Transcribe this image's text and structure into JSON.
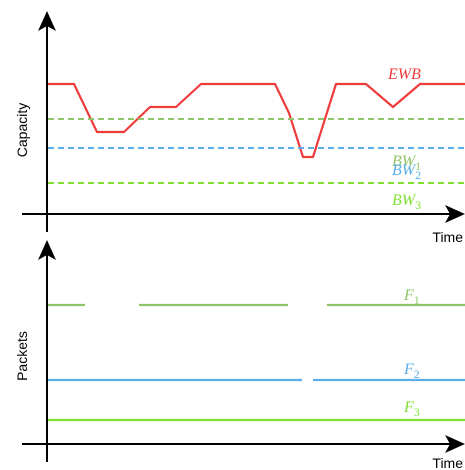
{
  "colors": {
    "ewb": "#ee3b3b",
    "bw1": "#8fc56a",
    "bw2": "#5aaee8",
    "bw3": "#80e032",
    "f1": "#8fc56a",
    "f2": "#5aaee8",
    "f3": "#80e032",
    "axis": "#000000"
  },
  "top_panel": {
    "y_axis_label": "Capacity",
    "x_axis_label": "Time",
    "ewb_label": {
      "main": "EWB"
    },
    "bw1_label": {
      "main": "BW",
      "sub": "1"
    },
    "bw2_label": {
      "main": "BW",
      "sub": "2"
    },
    "bw3_label": {
      "main": "BW",
      "sub": "3"
    }
  },
  "bottom_panel": {
    "y_axis_label": "Packets",
    "x_axis_label": "Time",
    "f1_label": {
      "main": "F",
      "sub": "1"
    },
    "f2_label": {
      "main": "F",
      "sub": "2"
    },
    "f3_label": {
      "main": "F",
      "sub": "3"
    }
  }
}
